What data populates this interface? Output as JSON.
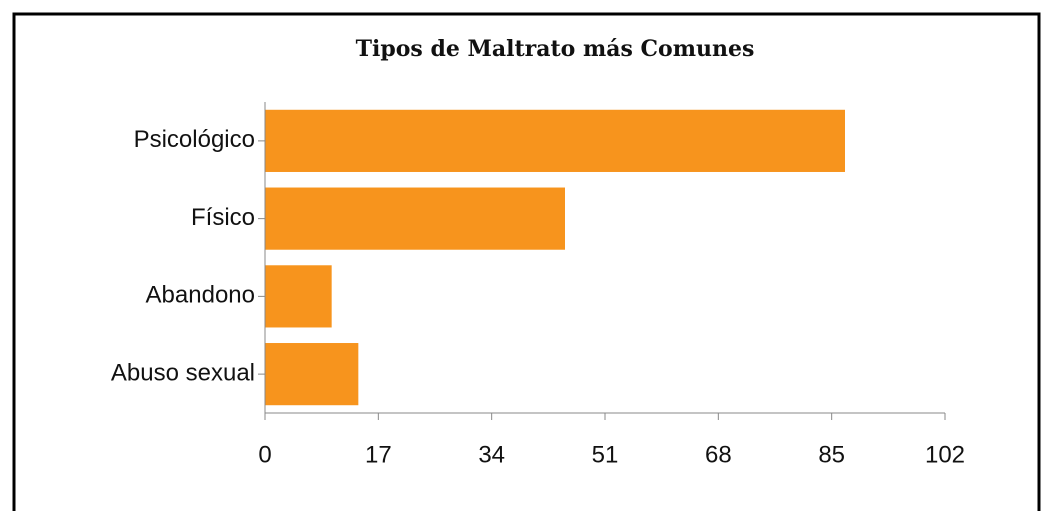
{
  "chart_data": {
    "type": "bar",
    "orientation": "horizontal",
    "title": "Tipos de Maltrato más Comunes",
    "categories": [
      "Psicológico",
      "Físico",
      "Abandono",
      "Abuso sexual"
    ],
    "values": [
      87,
      45,
      10,
      14
    ],
    "color": "#f7941d",
    "xlim": [
      0,
      102
    ],
    "xticks": [
      0,
      17,
      34,
      51,
      68,
      85,
      102
    ],
    "grid": false
  }
}
